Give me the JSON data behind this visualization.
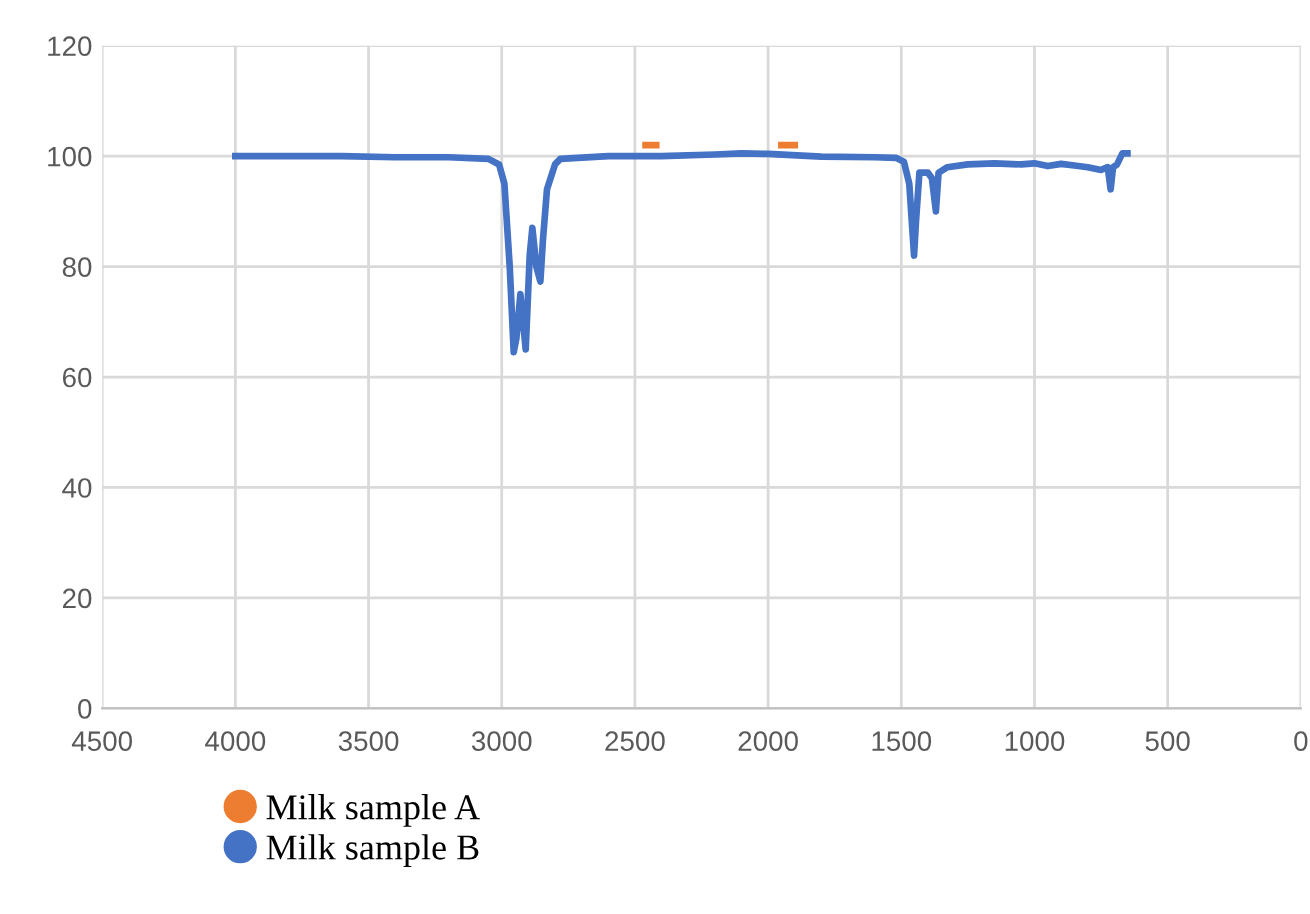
{
  "chart_data": {
    "type": "line",
    "x": [
      4000,
      3800,
      3600,
      3400,
      3200,
      3050,
      3010,
      2990,
      2970,
      2955,
      2945,
      2930,
      2910,
      2895,
      2885,
      2870,
      2855,
      2845,
      2830,
      2800,
      2780,
      2600,
      2400,
      2200,
      2100,
      2000,
      1800,
      1600,
      1520,
      1490,
      1470,
      1452,
      1445,
      1432,
      1400,
      1385,
      1370,
      1360,
      1327,
      1250,
      1150,
      1050,
      1000,
      950,
      900,
      850,
      800,
      750,
      725,
      714,
      705,
      690,
      670,
      651
    ],
    "series": [
      {
        "name": "Milk sample A",
        "color": "#ed7d31",
        "x": [
          2460,
          2420,
          2200,
          1950,
          1900
        ],
        "values": [
          102,
          102,
          null,
          102,
          102
        ]
      },
      {
        "name": "Milk sample B",
        "color": "#4472c4",
        "values": [
          100,
          100,
          100,
          99.8,
          99.8,
          99.5,
          98.5,
          95,
          80,
          64.5,
          67,
          75,
          65,
          82,
          87,
          80,
          77.3,
          85,
          94,
          98.5,
          99.5,
          100,
          100,
          100.3,
          100.5,
          100.4,
          99.9,
          99.8,
          99.7,
          99,
          95,
          82,
          88,
          97,
          97,
          96,
          90,
          97,
          98,
          98.5,
          98.7,
          98.5,
          98.7,
          98.2,
          98.6,
          98.3,
          98,
          97.5,
          98,
          94,
          98,
          98.5,
          100.5,
          100.5
        ]
      }
    ],
    "xlim": [
      4500,
      0
    ],
    "xticks": [
      4500,
      4000,
      3500,
      3000,
      2500,
      2000,
      1500,
      1000,
      500,
      0
    ],
    "ylim": [
      0,
      120
    ],
    "yticks": [
      0,
      20,
      40,
      60,
      80,
      100,
      120
    ],
    "grid": true,
    "legend": "bottom left",
    "marker": "none",
    "line_style": "solid"
  }
}
